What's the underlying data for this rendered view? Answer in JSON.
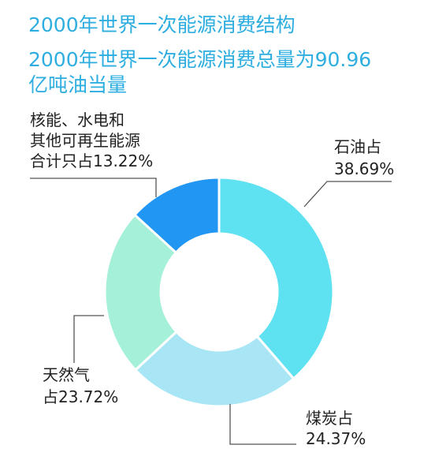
{
  "title": "2000年世界一次能源消费结构",
  "subtitle_line1": "2000年世界一次能源消费总量为90.96",
  "subtitle_line2": "亿吨油当量",
  "chart_data": {
    "type": "pie",
    "variant": "donut",
    "title": "2000年世界一次能源消费结构",
    "subtitle": "2000年世界一次能源消费总量为90.96亿吨油当量",
    "unit": "%",
    "slices": [
      {
        "category": "石油",
        "value": 38.69,
        "color": "#5ee1f0",
        "label_lines": [
          "石油占",
          "38.69%"
        ]
      },
      {
        "category": "煤炭",
        "value": 24.37,
        "color": "#a8e6f5",
        "label_lines": [
          "煤炭占",
          "24.37%"
        ]
      },
      {
        "category": "天然气",
        "value": 23.72,
        "color": "#a5f0d9",
        "label_lines": [
          "天然气",
          "占23.72%"
        ]
      },
      {
        "category": "核能、水电和其他可再生能源",
        "value": 13.22,
        "color": "#2196f3",
        "label_lines": [
          "核能、水电和",
          "其他可再生能源",
          "合计只占13.22%"
        ]
      }
    ]
  }
}
